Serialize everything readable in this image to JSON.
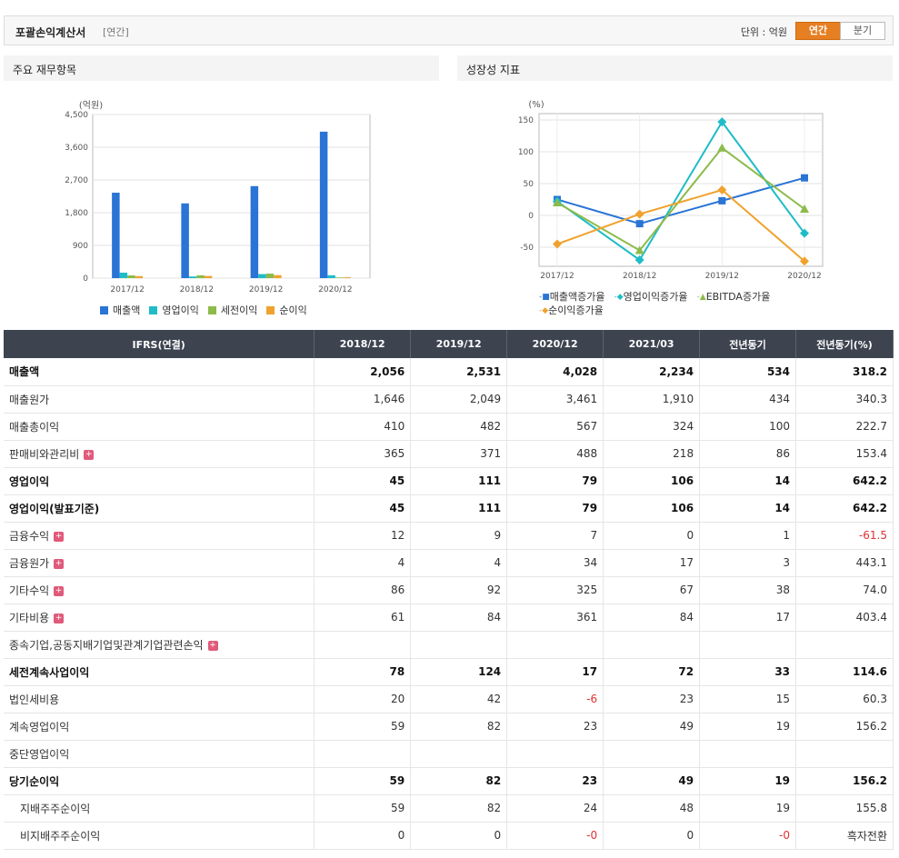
{
  "header": {
    "title": "포괄손익계산서",
    "period_badge": "[연간]",
    "unit_label": "단위 : 억원",
    "toggle_annual": "연간",
    "toggle_quarter": "분기"
  },
  "panels": {
    "left_title": "주요 재무항목",
    "right_title": "성장성 지표"
  },
  "colors": {
    "bar_sales": "#2a74d5",
    "bar_op": "#1fbcc8",
    "bar_pretax": "#8cbb4a",
    "bar_net": "#f0a22e",
    "accent": "#e67e22"
  },
  "chart_data": [
    {
      "type": "bar",
      "ylabel": "(억원)",
      "ylim": [
        0,
        4500
      ],
      "yticks": [
        "0",
        "900",
        "1,800",
        "2,700",
        "3,600",
        "4,500"
      ],
      "ytick_values": [
        0,
        900,
        1800,
        2700,
        3600,
        4500
      ],
      "categories": [
        "2017/12",
        "2018/12",
        "2019/12",
        "2020/12"
      ],
      "series": [
        {
          "name": "매출액",
          "values": [
            2350,
            2056,
            2531,
            4028
          ]
        },
        {
          "name": "영업이익",
          "values": [
            150,
            45,
            111,
            79
          ]
        },
        {
          "name": "세전이익",
          "values": [
            75,
            78,
            124,
            17
          ]
        },
        {
          "name": "순이익",
          "values": [
            55,
            59,
            82,
            23
          ]
        }
      ],
      "legend": "bottom",
      "grid": true
    },
    {
      "type": "line",
      "ylabel": "(%)",
      "ylim": [
        -80,
        160
      ],
      "yticks": [
        "-50",
        "0",
        "50",
        "100",
        "150"
      ],
      "ytick_values": [
        -50,
        0,
        50,
        100,
        150
      ],
      "categories": [
        "2017/12",
        "2018/12",
        "2019/12",
        "2020/12"
      ],
      "series": [
        {
          "name": "매출액증가율",
          "values": [
            25,
            -13,
            23,
            59
          ],
          "color": "#2a74d5"
        },
        {
          "name": "영업이익증가율",
          "values": [
            22,
            -70,
            147,
            -28
          ],
          "color": "#1fbcc8"
        },
        {
          "name": "EBITDA증가율",
          "values": [
            20,
            -55,
            106,
            10
          ],
          "color": "#8cbb4a"
        },
        {
          "name": "순이익증가율",
          "values": [
            -45,
            2,
            40,
            -72
          ],
          "color": "#f0a22e"
        }
      ],
      "legend": "bottom",
      "grid": true
    }
  ],
  "table": {
    "columns": [
      "IFRS(연결)",
      "2018/12",
      "2019/12",
      "2020/12",
      "2021/03",
      "전년동기",
      "전년동기(%)"
    ],
    "rows": [
      {
        "label": "매출액",
        "values": [
          "2,056",
          "2,531",
          "4,028",
          "2,234",
          "534",
          "318.2"
        ],
        "bold": true,
        "plus": false,
        "indent": false,
        "sep": false
      },
      {
        "label": "매출원가",
        "values": [
          "1,646",
          "2,049",
          "3,461",
          "1,910",
          "434",
          "340.3"
        ],
        "bold": false,
        "plus": false,
        "indent": false,
        "sep": false
      },
      {
        "label": "매출총이익",
        "values": [
          "410",
          "482",
          "567",
          "324",
          "100",
          "222.7"
        ],
        "bold": false,
        "plus": false,
        "indent": false,
        "sep": false
      },
      {
        "label": "판매비와관리비",
        "values": [
          "365",
          "371",
          "488",
          "218",
          "86",
          "153.4"
        ],
        "bold": false,
        "plus": true,
        "indent": false,
        "sep": false
      },
      {
        "label": "영업이익",
        "values": [
          "45",
          "111",
          "79",
          "106",
          "14",
          "642.2"
        ],
        "bold": true,
        "plus": false,
        "indent": false,
        "sep": true
      },
      {
        "label": "영업이익(발표기준)",
        "values": [
          "45",
          "111",
          "79",
          "106",
          "14",
          "642.2"
        ],
        "bold": true,
        "plus": false,
        "indent": false,
        "sep": false
      },
      {
        "label": "금융수익",
        "values": [
          "12",
          "9",
          "7",
          "0",
          "1",
          "-61.5"
        ],
        "bold": false,
        "plus": true,
        "indent": false,
        "sep": false,
        "neg": [
          5
        ]
      },
      {
        "label": "금융원가",
        "values": [
          "4",
          "4",
          "34",
          "17",
          "3",
          "443.1"
        ],
        "bold": false,
        "plus": true,
        "indent": false,
        "sep": false
      },
      {
        "label": "기타수익",
        "values": [
          "86",
          "92",
          "325",
          "67",
          "38",
          "74.0"
        ],
        "bold": false,
        "plus": true,
        "indent": false,
        "sep": false
      },
      {
        "label": "기타비용",
        "values": [
          "61",
          "84",
          "361",
          "84",
          "17",
          "403.4"
        ],
        "bold": false,
        "plus": true,
        "indent": false,
        "sep": false
      },
      {
        "label": "종속기업,공동지배기업및관계기업관련손익",
        "values": [
          "",
          "",
          "",
          "",
          "",
          ""
        ],
        "bold": false,
        "plus": true,
        "indent": false,
        "sep": false
      },
      {
        "label": "세전계속사업이익",
        "values": [
          "78",
          "124",
          "17",
          "72",
          "33",
          "114.6"
        ],
        "bold": true,
        "plus": false,
        "indent": false,
        "sep": true
      },
      {
        "label": "법인세비용",
        "values": [
          "20",
          "42",
          "-6",
          "23",
          "15",
          "60.3"
        ],
        "bold": false,
        "plus": false,
        "indent": false,
        "sep": false,
        "neg": [
          2
        ]
      },
      {
        "label": "계속영업이익",
        "values": [
          "59",
          "82",
          "23",
          "49",
          "19",
          "156.2"
        ],
        "bold": false,
        "plus": false,
        "indent": false,
        "sep": false
      },
      {
        "label": "중단영업이익",
        "values": [
          "",
          "",
          "",
          "",
          "",
          ""
        ],
        "bold": false,
        "plus": false,
        "indent": false,
        "sep": false
      },
      {
        "label": "당기순이익",
        "values": [
          "59",
          "82",
          "23",
          "49",
          "19",
          "156.2"
        ],
        "bold": true,
        "plus": false,
        "indent": false,
        "sep": true
      },
      {
        "label": "지배주주순이익",
        "values": [
          "59",
          "82",
          "24",
          "48",
          "19",
          "155.8"
        ],
        "bold": false,
        "plus": false,
        "indent": true,
        "sep": false
      },
      {
        "label": "비지배주주순이익",
        "values": [
          "0",
          "0",
          "-0",
          "0",
          "-0",
          "흑자전환"
        ],
        "bold": false,
        "plus": false,
        "indent": true,
        "sep": false,
        "neg": [
          2,
          4
        ]
      }
    ]
  }
}
